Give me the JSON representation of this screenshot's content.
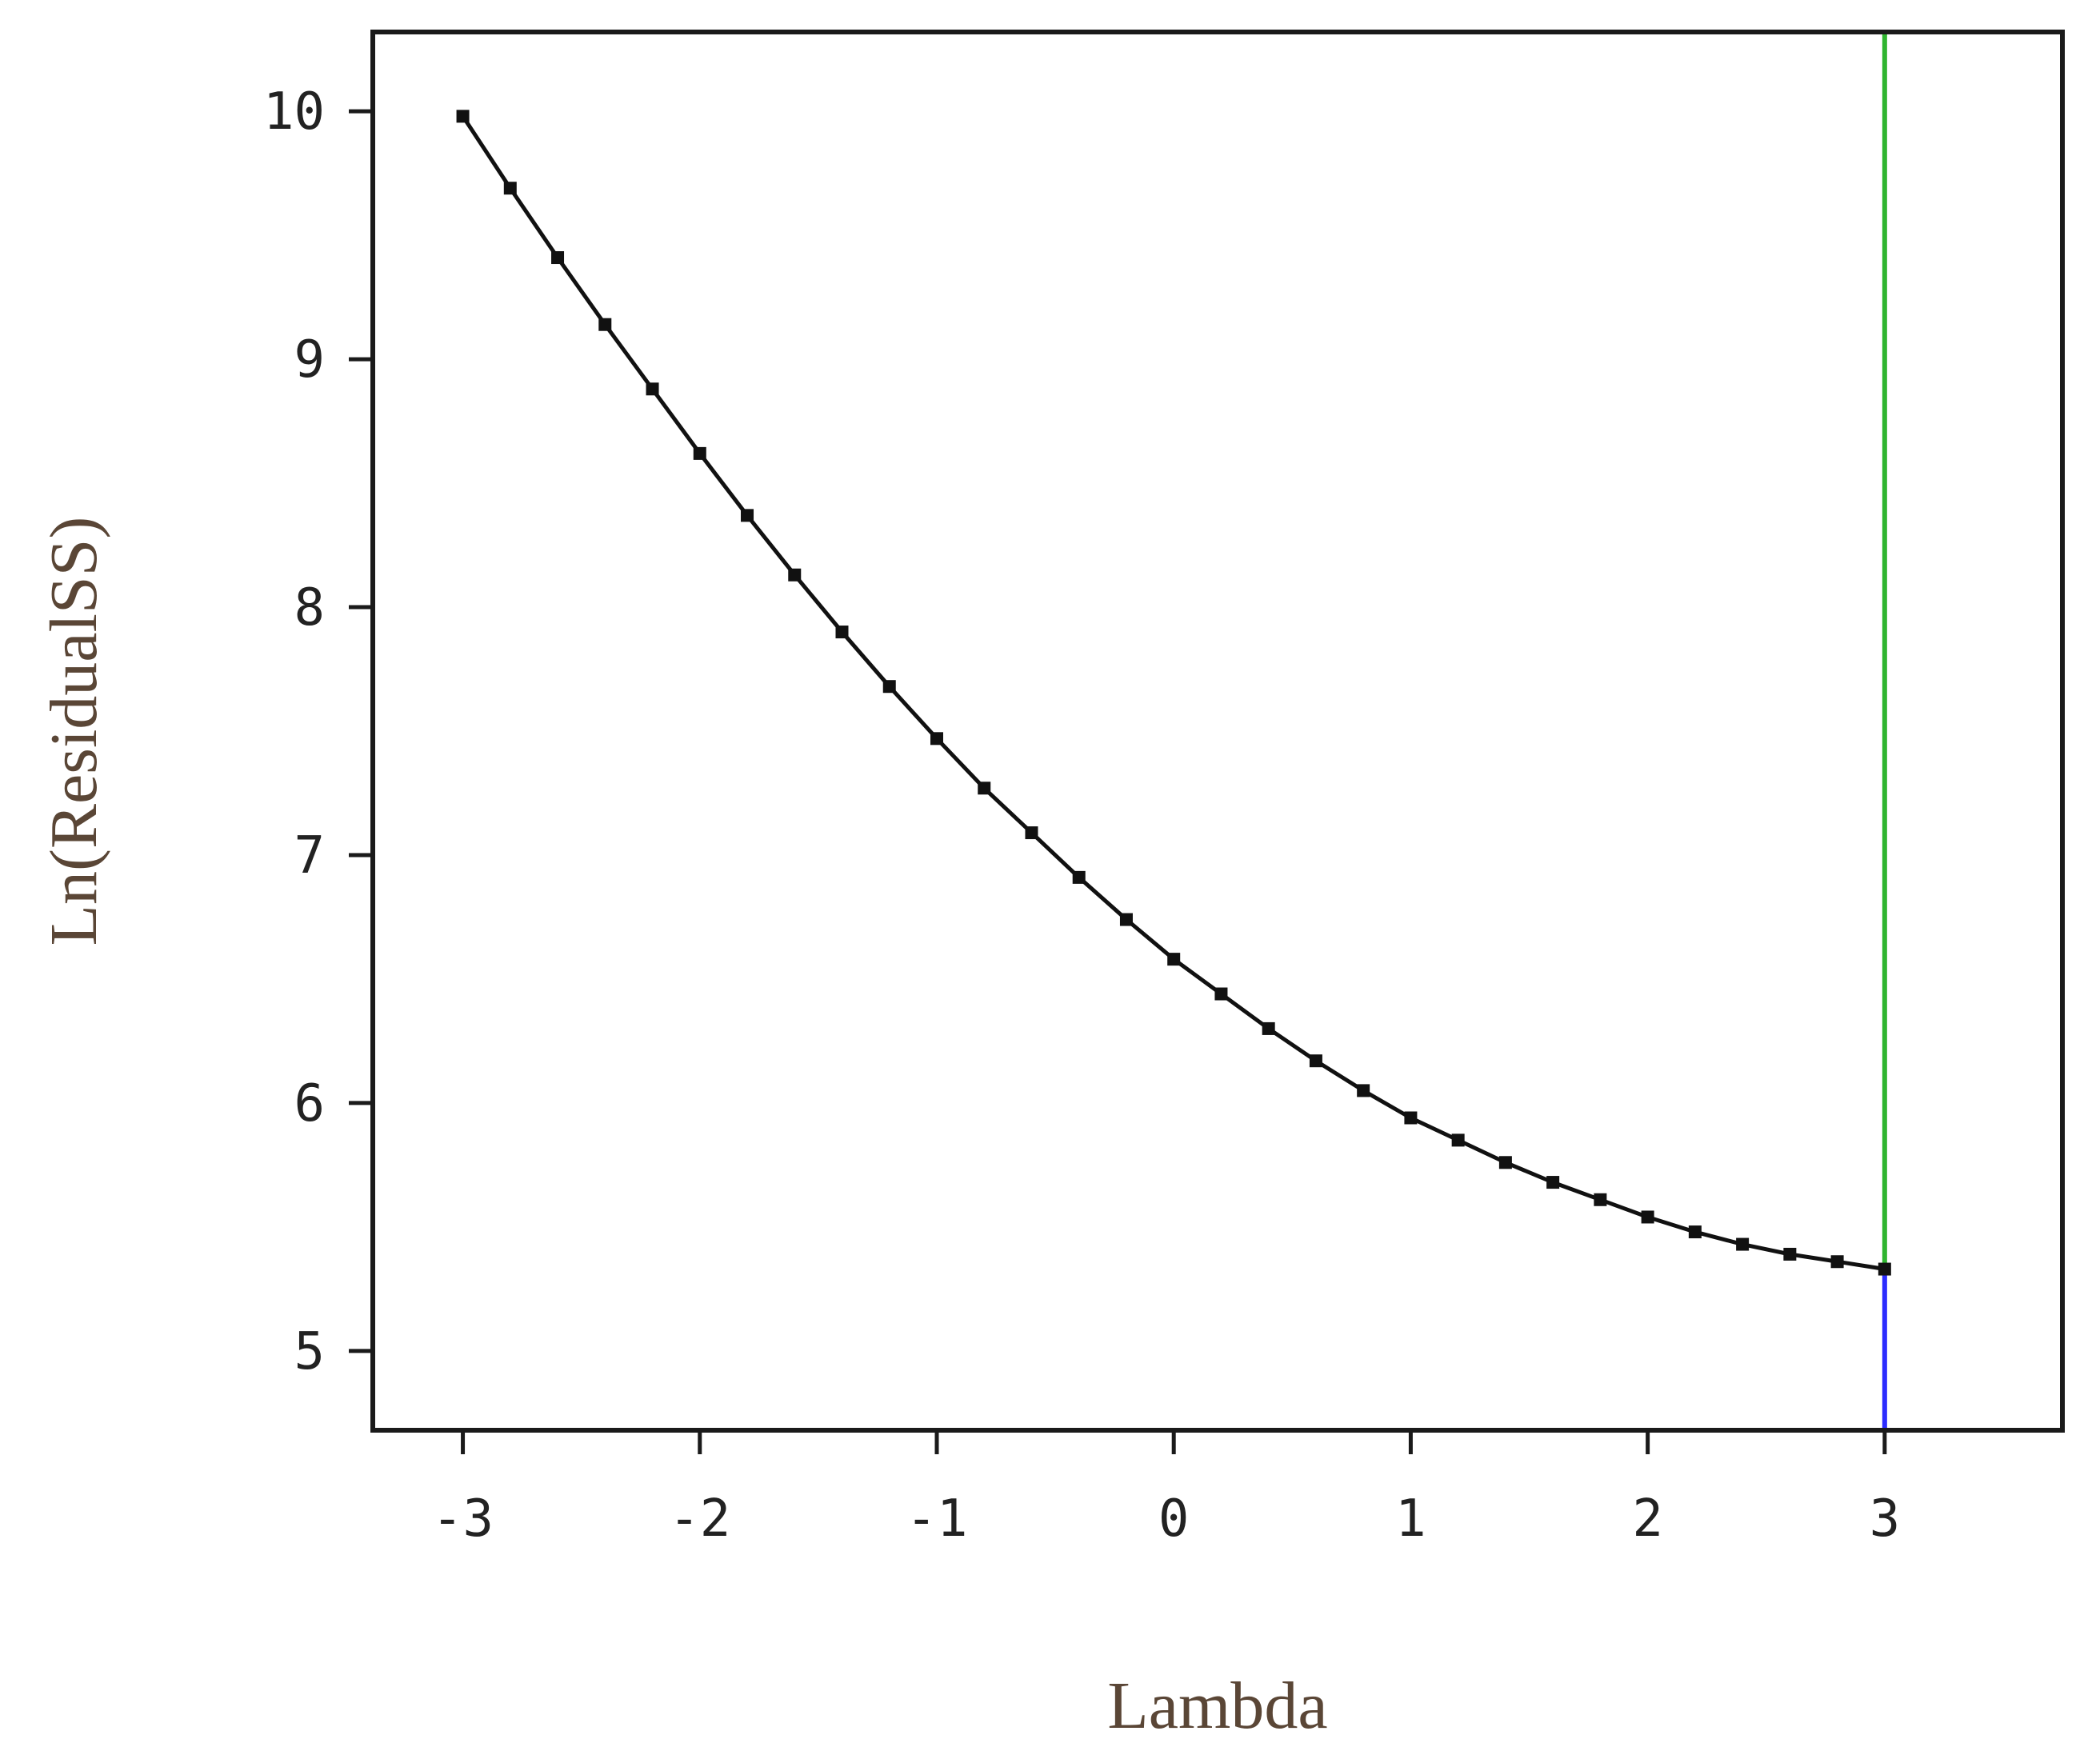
{
  "chart_data": {
    "type": "line",
    "title": "",
    "xlabel": "Lambda",
    "ylabel": "Ln(ResidualSS)",
    "xlim": [
      -3.38,
      3.75
    ],
    "ylim": [
      4.68,
      10.32
    ],
    "xticks": [
      -3,
      -2,
      -1,
      0,
      1,
      2,
      3
    ],
    "xtick_labels": [
      "-3",
      "-2",
      "-1",
      "0",
      "1",
      "2",
      "3"
    ],
    "yticks": [
      5,
      6,
      7,
      8,
      9,
      10
    ],
    "ytick_labels": [
      "5",
      "6",
      "7",
      "8",
      "9",
      "10"
    ],
    "grid": false,
    "legend": "none",
    "series": [
      {
        "color": "#111111",
        "marker": "square",
        "x": [
          -3.0,
          -2.8,
          -2.6,
          -2.4,
          -2.2,
          -2.0,
          -1.8,
          -1.6,
          -1.4,
          -1.2,
          -1.0,
          -0.8,
          -0.6,
          -0.4,
          -0.2,
          0.0,
          0.2,
          0.4,
          0.6,
          0.8,
          1.0,
          1.2,
          1.4,
          1.6,
          1.8,
          2.0,
          2.2,
          2.4,
          2.6,
          2.8,
          3.0
        ],
        "y": [
          9.98,
          9.69,
          9.41,
          9.14,
          8.88,
          8.62,
          8.37,
          8.13,
          7.9,
          7.68,
          7.47,
          7.27,
          7.09,
          6.91,
          6.74,
          6.58,
          6.44,
          6.3,
          6.17,
          6.05,
          5.94,
          5.85,
          5.76,
          5.68,
          5.61,
          5.54,
          5.48,
          5.43,
          5.39,
          5.36,
          5.33
        ]
      }
    ],
    "vertical_lines": [
      {
        "x": 3,
        "from_y": 5.33,
        "to_y": "top",
        "color": "#2fb52f"
      },
      {
        "x": 3,
        "from_y": "bottom",
        "to_y": 5.33,
        "color": "#2b2bff"
      }
    ]
  }
}
